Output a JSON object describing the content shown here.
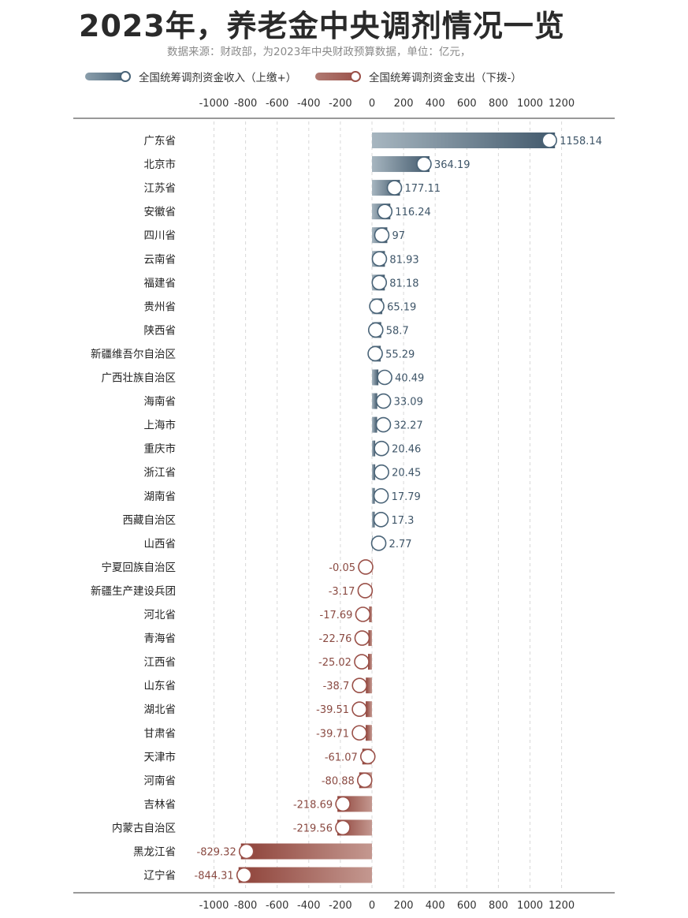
{
  "title": "2023年，养老金中央调剂情况一览",
  "subtitle": "数据来源：财政部，为2023年中央财政预算数据，单位：亿元，",
  "legend": {
    "positive_label": "全国统筹调剂资金收入（上缴+）",
    "negative_label": "全国统筹调剂资金支出（下拨-）"
  },
  "colors": {
    "positive": "#4a6478",
    "negative": "#9a5048",
    "grid": "#d8d8d8"
  },
  "chart_data": {
    "type": "bar",
    "orientation": "horizontal",
    "xlim": [
      -1000,
      1200
    ],
    "xticks": [
      -1000,
      -800,
      -600,
      -400,
      -200,
      0,
      200,
      400,
      600,
      800,
      1000,
      1200
    ],
    "grid": true,
    "categories": [
      "广东省",
      "北京市",
      "江苏省",
      "安徽省",
      "四川省",
      "云南省",
      "福建省",
      "贵州省",
      "陕西省",
      "新疆维吾尔自治区",
      "广西壮族自治区",
      "海南省",
      "上海市",
      "重庆市",
      "浙江省",
      "湖南省",
      "西藏自治区",
      "山西省",
      "宁夏回族自治区",
      "新疆生产建设兵团",
      "河北省",
      "青海省",
      "江西省",
      "山东省",
      "湖北省",
      "甘肃省",
      "天津市",
      "河南省",
      "吉林省",
      "内蒙古自治区",
      "黑龙江省",
      "辽宁省"
    ],
    "values": [
      1158.14,
      364.19,
      177.11,
      116.24,
      97,
      81.93,
      81.18,
      65.19,
      58.7,
      55.29,
      40.49,
      33.09,
      32.27,
      20.46,
      20.45,
      17.79,
      17.3,
      2.77,
      -0.05,
      -3.17,
      -17.69,
      -22.76,
      -25.02,
      -38.7,
      -39.51,
      -39.71,
      -61.07,
      -80.88,
      -218.69,
      -219.56,
      -829.32,
      -844.31
    ],
    "value_labels": [
      "1158.14",
      "364.19",
      "177.11",
      "116.24",
      "97",
      "81.93",
      "81.18",
      "65.19",
      "58.7",
      "55.29",
      "40.49",
      "33.09",
      "32.27",
      "20.46",
      "20.45",
      "17.79",
      "17.3",
      "2.77",
      "-0.05",
      "-3.17",
      "-17.69",
      "-22.76",
      "-25.02",
      "-38.7",
      "-39.51",
      "-39.71",
      "-61.07",
      "-80.88",
      "-218.69",
      "-219.56",
      "-829.32",
      "-844.31"
    ]
  }
}
